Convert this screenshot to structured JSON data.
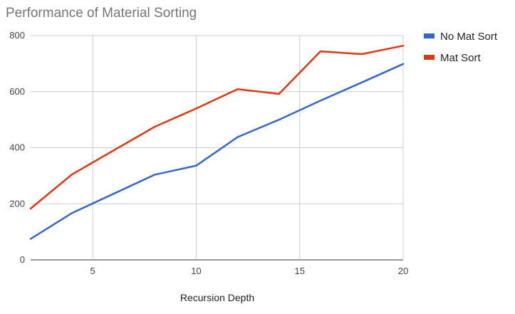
{
  "chart_data": {
    "type": "line",
    "title": "Performance of Material Sorting",
    "xlabel": "Recursion Depth",
    "ylabel": "",
    "xlim": [
      2,
      20
    ],
    "ylim": [
      0,
      800
    ],
    "x_ticks": [
      5,
      10,
      15,
      20
    ],
    "y_ticks": [
      0,
      200,
      400,
      600,
      800
    ],
    "grid": true,
    "legend_position": "right",
    "series": [
      {
        "name": "No Mat Sort",
        "color": "#3366cc",
        "points": [
          [
            2,
            75
          ],
          [
            4,
            167
          ],
          [
            8,
            304
          ],
          [
            10,
            336
          ],
          [
            12,
            438
          ],
          [
            14,
            500
          ],
          [
            16,
            568
          ],
          [
            18,
            633
          ],
          [
            20,
            699
          ]
        ]
      },
      {
        "name": "Mat Sort",
        "color": "#dc3912",
        "points": [
          [
            2,
            183
          ],
          [
            4,
            305
          ],
          [
            8,
            475
          ],
          [
            10,
            540
          ],
          [
            12,
            609
          ],
          [
            14,
            592
          ],
          [
            16,
            744
          ],
          [
            18,
            734
          ],
          [
            20,
            764
          ]
        ]
      }
    ]
  }
}
